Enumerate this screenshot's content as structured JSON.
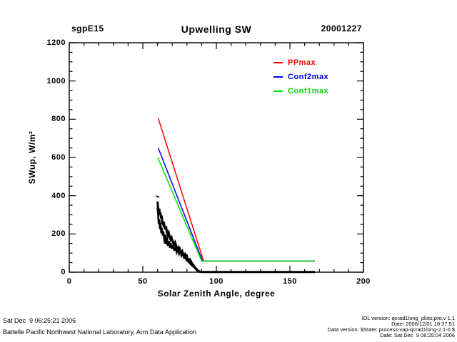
{
  "header": {
    "site": "sgpE15",
    "title": "Upwelling SW",
    "date": "20001227"
  },
  "axes": {
    "y_label": "SWup, W/m²",
    "x_label": "Solar Zenith Angle, degree",
    "x_ticks": [
      0,
      50,
      100,
      150,
      200
    ],
    "y_ticks": [
      0,
      200,
      400,
      600,
      800,
      1000,
      1200
    ]
  },
  "legend": {
    "items": [
      {
        "label": "PPmax",
        "color": "#ff0000"
      },
      {
        "label": "Conf2max",
        "color": "#0000ff"
      },
      {
        "label": "Conf1max",
        "color": "#00e000"
      }
    ]
  },
  "footer": {
    "left1": "Sat Dec  9 06:25:21 2006",
    "left2": "Battelle Pacific Northwest National Laboratory, Arm Data Application",
    "right1": "IDL version: qcrad1long_plots.pro,v 1.1",
    "right2": "Date: 2006/12/01 18:37:51",
    "right3": "Data version: $State: process-vap-qcrad1long-2.1-0 $",
    "right4": "Date: Sat Dec  9 06:25:04 2006"
  },
  "chart_data": {
    "type": "line",
    "title": "Upwelling SW",
    "subtitle_left": "sgpE15",
    "subtitle_right": "20001227",
    "xlabel": "Solar Zenith Angle, degree",
    "ylabel": "SWup, W/m²",
    "xlim": [
      0,
      200
    ],
    "ylim": [
      0,
      1200
    ],
    "x_major": 50,
    "x_minor": 10,
    "y_major": 200,
    "y_minor": 50,
    "grid": false,
    "legend_position": "upper right inside",
    "series": [
      {
        "name": "PPmax",
        "color": "#ff0000",
        "width": 1.5,
        "points": [
          [
            60.5,
            805
          ],
          [
            91.3,
            58
          ],
          [
            167,
            58
          ]
        ]
      },
      {
        "name": "Conf2max",
        "color": "#0000ff",
        "width": 1.5,
        "points": [
          [
            60.5,
            650
          ],
          [
            90.6,
            58
          ],
          [
            167,
            58
          ]
        ]
      },
      {
        "name": "Conf1max",
        "color": "#00e000",
        "width": 1.5,
        "points": [
          [
            60.3,
            598
          ],
          [
            90,
            58
          ],
          [
            167,
            58
          ]
        ]
      },
      {
        "name": "measured-swup-peak-dot",
        "color": "#000000",
        "width": 5,
        "points": [
          [
            59.9,
            392
          ],
          [
            60.3,
            398
          ]
        ]
      },
      {
        "name": "measured-swup-strand1",
        "color": "#000000",
        "width": 3,
        "points": [
          [
            60,
            370
          ],
          [
            60.3,
            345
          ],
          [
            60.8,
            318
          ],
          [
            61.2,
            332
          ],
          [
            61.6,
            298
          ],
          [
            62,
            312
          ],
          [
            62.4,
            282
          ],
          [
            62.8,
            296
          ],
          [
            63.2,
            266
          ],
          [
            63.8,
            252
          ],
          [
            64.2,
            264
          ],
          [
            64.8,
            238
          ],
          [
            65.4,
            224
          ],
          [
            65.8,
            240
          ],
          [
            66.4,
            208
          ],
          [
            67,
            194
          ],
          [
            67.6,
            206
          ],
          [
            68.2,
            182
          ],
          [
            69,
            168
          ],
          [
            69.6,
            180
          ],
          [
            70.4,
            158
          ],
          [
            71.2,
            144
          ],
          [
            72,
            156
          ],
          [
            72.8,
            134
          ],
          [
            73.6,
            120
          ],
          [
            74.4,
            130
          ],
          [
            75.2,
            112
          ],
          [
            76,
            100
          ],
          [
            76.8,
            110
          ],
          [
            77.6,
            92
          ],
          [
            78.4,
            82
          ],
          [
            79.2,
            90
          ],
          [
            80,
            72
          ],
          [
            81,
            62
          ],
          [
            82,
            68
          ],
          [
            83,
            52
          ],
          [
            84,
            42
          ],
          [
            85,
            30
          ],
          [
            86,
            20
          ],
          [
            87,
            12
          ],
          [
            88,
            6
          ],
          [
            89,
            2
          ],
          [
            91,
            1
          ],
          [
            100,
            1
          ],
          [
            110,
            1
          ],
          [
            120,
            1
          ],
          [
            130,
            1
          ],
          [
            140,
            1
          ],
          [
            150,
            1
          ],
          [
            160,
            1
          ],
          [
            167,
            1
          ]
        ]
      },
      {
        "name": "measured-swup-strand2",
        "color": "#000000",
        "width": 2.5,
        "points": [
          [
            60,
            340
          ],
          [
            60.4,
            300
          ],
          [
            60.8,
            252
          ],
          [
            61.2,
            278
          ],
          [
            61.6,
            226
          ],
          [
            62,
            258
          ],
          [
            62.5,
            204
          ],
          [
            63,
            232
          ],
          [
            63.5,
            192
          ],
          [
            64,
            214
          ],
          [
            64.5,
            176
          ],
          [
            65,
            150
          ],
          [
            65.5,
            196
          ],
          [
            66,
            146
          ],
          [
            66.5,
            184
          ],
          [
            67,
            138
          ],
          [
            67.8,
            162
          ],
          [
            68.4,
            128
          ],
          [
            69,
            152
          ],
          [
            69.8,
            122
          ],
          [
            70.6,
            142
          ],
          [
            71.4,
            112
          ],
          [
            72.2,
            134
          ],
          [
            73,
            104
          ],
          [
            73.8,
            122
          ],
          [
            74.6,
            96
          ],
          [
            75.4,
            116
          ],
          [
            76.2,
            88
          ],
          [
            77,
            106
          ],
          [
            77.8,
            80
          ],
          [
            78.6,
            94
          ],
          [
            79.4,
            70
          ],
          [
            80.2,
            82
          ],
          [
            81,
            58
          ],
          [
            82,
            66
          ],
          [
            83,
            46
          ],
          [
            84,
            36
          ],
          [
            85,
            26
          ],
          [
            86,
            16
          ],
          [
            87,
            8
          ],
          [
            88,
            3
          ],
          [
            89,
            1
          ]
        ]
      },
      {
        "name": "measured-swup-strand3",
        "color": "#000000",
        "width": 2.5,
        "points": [
          [
            62.5,
            268
          ],
          [
            64,
            248
          ],
          [
            65.5,
            228
          ],
          [
            67,
            208
          ],
          [
            68.5,
            188
          ],
          [
            70,
            168
          ],
          [
            71.5,
            150
          ],
          [
            73,
            132
          ],
          [
            74.5,
            116
          ],
          [
            76,
            100
          ],
          [
            77.5,
            86
          ],
          [
            79,
            72
          ],
          [
            80.5,
            58
          ],
          [
            82,
            46
          ],
          [
            83.5,
            34
          ],
          [
            85,
            24
          ],
          [
            86.5,
            14
          ],
          [
            88,
            6
          ],
          [
            89.5,
            2
          ]
        ]
      }
    ]
  }
}
